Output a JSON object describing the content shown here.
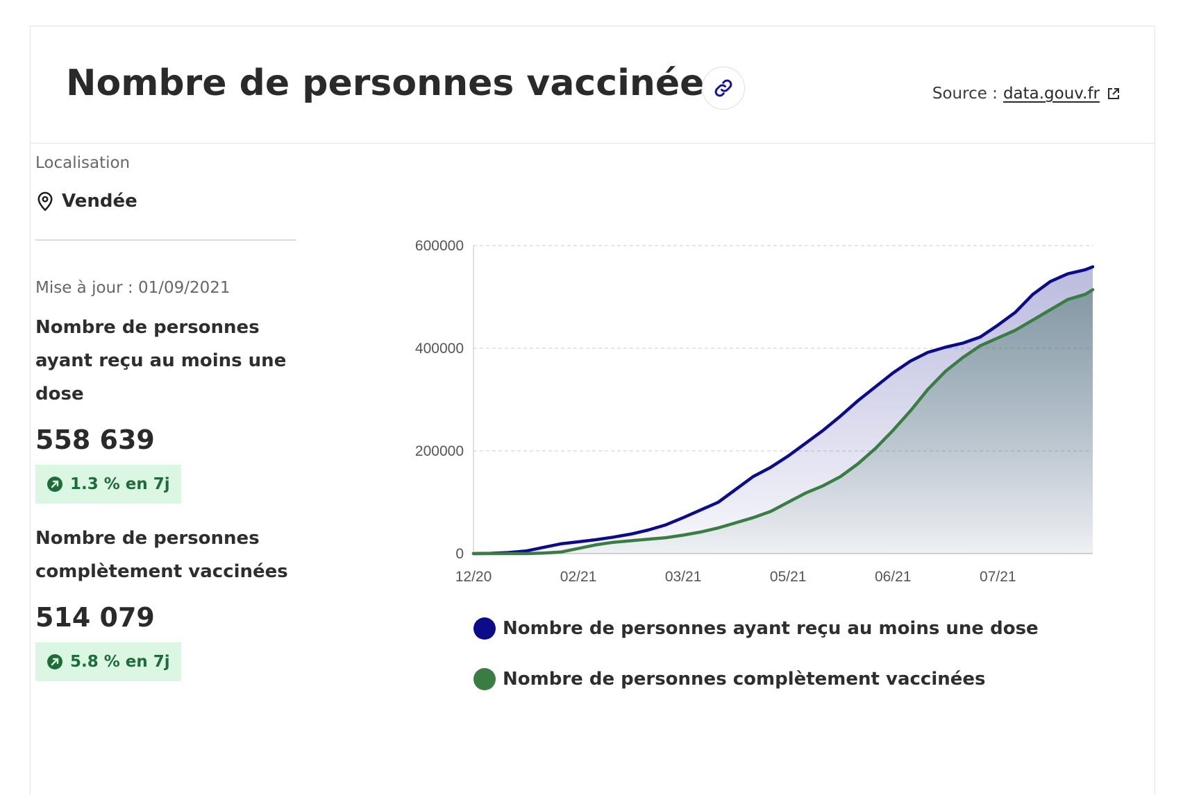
{
  "header": {
    "title": "Nombre de personnes vaccinées",
    "source_prefix": "Source :",
    "source_link": "data.gouv.fr",
    "link_icon": "link-icon",
    "external_icon": "external-link-icon"
  },
  "sidebar": {
    "location_label": "Localisation",
    "location_name": "Vendée",
    "location_icon": "map-pin-icon",
    "update_text": "Mise à jour : 01/09/2021",
    "stats": [
      {
        "title": "Nombre de personnes ayant reçu au moins une dose",
        "value": "558 639",
        "trend": "1.3 % en 7j"
      },
      {
        "title": "Nombre de personnes complètement vaccinées",
        "value": "514 079",
        "trend": "5.8 % en 7j"
      }
    ]
  },
  "colors": {
    "series_1": "#0c0c8a",
    "series_2": "#3a7d44",
    "badge_bg": "#dbf7e3",
    "badge_text": "#1f6b3a"
  },
  "chart_data": {
    "type": "area",
    "x": [
      "2020-12-27",
      "2021-01-03",
      "2021-01-10",
      "2021-01-17",
      "2021-01-24",
      "2021-01-31",
      "2021-02-07",
      "2021-02-14",
      "2021-02-21",
      "2021-02-28",
      "2021-03-07",
      "2021-03-14",
      "2021-03-21",
      "2021-03-28",
      "2021-04-04",
      "2021-04-11",
      "2021-04-18",
      "2021-04-25",
      "2021-05-02",
      "2021-05-09",
      "2021-05-16",
      "2021-05-23",
      "2021-05-30",
      "2021-06-06",
      "2021-06-13",
      "2021-06-20",
      "2021-06-27",
      "2021-07-04",
      "2021-07-11",
      "2021-07-18",
      "2021-07-25",
      "2021-08-01",
      "2021-08-08",
      "2021-08-15",
      "2021-08-22",
      "2021-08-29",
      "2021-09-01"
    ],
    "series": [
      {
        "name": "Nombre de personnes ayant reçu au moins une dose",
        "values": [
          0,
          500,
          2000,
          5000,
          12000,
          19000,
          23000,
          27000,
          32000,
          38000,
          46000,
          56000,
          70000,
          85000,
          100000,
          125000,
          150000,
          168000,
          190000,
          215000,
          240000,
          268000,
          298000,
          325000,
          352000,
          375000,
          392000,
          402000,
          410000,
          422000,
          445000,
          470000,
          505000,
          530000,
          545000,
          553000,
          558639
        ]
      },
      {
        "name": "Nombre de personnes complètement vaccinées",
        "values": [
          0,
          0,
          0,
          0,
          1000,
          3000,
          10000,
          17000,
          22000,
          25000,
          28000,
          31000,
          36000,
          42000,
          50000,
          60000,
          70000,
          82000,
          100000,
          118000,
          132000,
          150000,
          175000,
          205000,
          240000,
          278000,
          320000,
          355000,
          382000,
          405000,
          420000,
          435000,
          455000,
          475000,
          495000,
          505000,
          514079
        ]
      }
    ],
    "x_ticks": [
      "12/20",
      "02/21",
      "03/21",
      "05/21",
      "06/21",
      "07/21"
    ],
    "x_tick_dates": [
      "2020-12-27",
      "2021-02-07",
      "2021-03-21",
      "2021-05-02",
      "2021-06-13",
      "2021-07-25"
    ],
    "y_ticks": [
      0,
      200000,
      400000,
      600000
    ],
    "ylim": [
      0,
      600000
    ],
    "grid": "horizontal dashed",
    "legend_position": "bottom"
  }
}
